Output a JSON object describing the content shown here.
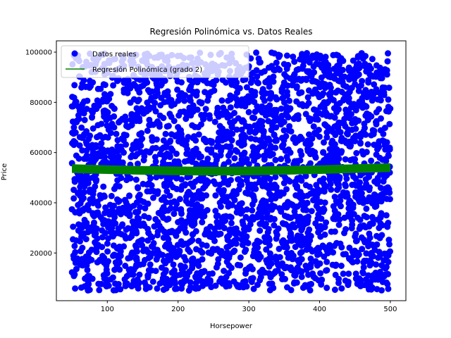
{
  "chart_data": {
    "type": "scatter",
    "title": "Regresión Polinómica vs. Datos Reales",
    "xlabel": "Horsepower",
    "ylabel": "Price",
    "xlim": [
      28,
      522
    ],
    "ylim": [
      1000,
      104500
    ],
    "xticks": [
      100,
      200,
      300,
      400,
      500
    ],
    "yticks": [
      20000,
      40000,
      60000,
      80000,
      100000
    ],
    "grid": false,
    "legend_position": "upper-left",
    "series": [
      {
        "name": "Datos reales",
        "kind": "scatter",
        "color": "#0000ff",
        "count": 3000,
        "x_range": [
          50,
          500
        ],
        "y_range": [
          5000,
          100000
        ],
        "distribution": "uniform"
      },
      {
        "name": "Regresión Polinómica (grado 2)",
        "kind": "line",
        "color": "#008000",
        "x": [
          50,
          100,
          150,
          200,
          250,
          300,
          350,
          400,
          450,
          500
        ],
        "y": [
          53600,
          53200,
          52900,
          52700,
          52600,
          52700,
          52900,
          53200,
          53600,
          54000
        ],
        "band": 2200
      }
    ]
  }
}
